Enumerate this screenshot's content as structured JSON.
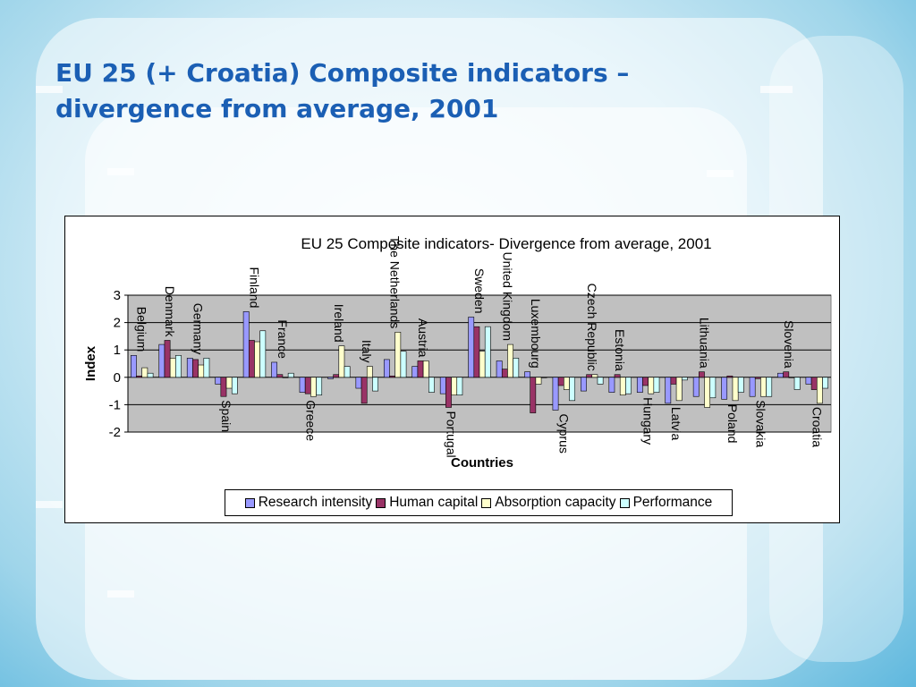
{
  "slide": {
    "title_line1": "EU 25 (+ Croatia) Composite indicators –",
    "title_line2": "divergence from average, 2001"
  },
  "chart_data": {
    "type": "bar",
    "title": "EU 25 Composite indicators- Divergence from average, 2001",
    "xlabel": "Countries",
    "ylabel": "Index",
    "ylim": [
      -2,
      3
    ],
    "yticks": [
      3,
      2,
      1,
      0,
      -1,
      -2
    ],
    "grid": true,
    "legend_position": "bottom",
    "categories": [
      "Belgium",
      "Denmark",
      "Germany",
      "Spain",
      "Finland",
      "France",
      "Greece",
      "Ireland",
      "Italy",
      "The Netherlands",
      "Austria",
      "Portugal",
      "Sweden",
      "United Kingdom",
      "Luxembourg",
      "Cyprus",
      "Czech Republic",
      "Estonia",
      "Hungary",
      "Latvia",
      "Lithuania",
      "Poland",
      "Slovakia",
      "Slovenia",
      "Croatia"
    ],
    "series": [
      {
        "name": "Research intensity",
        "color": "#9999ff",
        "values": [
          0.8,
          1.2,
          0.7,
          -0.25,
          2.4,
          0.55,
          -0.55,
          -0.05,
          -0.4,
          0.65,
          0.4,
          -0.6,
          2.2,
          0.6,
          0.2,
          -1.2,
          -0.5,
          -0.55,
          -0.55,
          -0.95,
          -0.7,
          -0.8,
          -0.7,
          0.15,
          -0.25
        ]
      },
      {
        "name": "Human capital",
        "color": "#993366",
        "values": [
          0.05,
          1.35,
          0.65,
          -0.7,
          1.35,
          0.1,
          -0.6,
          0.1,
          -0.95,
          0.05,
          0.6,
          -1.1,
          1.85,
          0.3,
          -1.3,
          -0.3,
          0.1,
          0.1,
          -0.3,
          -0.25,
          0.2,
          0.05,
          -0.05,
          0.2,
          -0.45
        ]
      },
      {
        "name": "Absorption capacity",
        "color": "#ffffcc",
        "values": [
          0.35,
          0.7,
          0.45,
          -0.4,
          1.3,
          0.0,
          -0.7,
          1.15,
          0.4,
          1.65,
          0.6,
          -0.65,
          0.95,
          1.2,
          -0.25,
          -0.45,
          0.1,
          -0.65,
          -0.6,
          -0.85,
          -1.1,
          -0.85,
          -0.7,
          0.0,
          -0.95
        ]
      },
      {
        "name": "Performance",
        "color": "#ccffff",
        "values": [
          0.15,
          0.8,
          0.7,
          -0.6,
          1.7,
          0.15,
          -0.65,
          0.4,
          -0.5,
          0.95,
          -0.55,
          -0.65,
          1.85,
          0.7,
          0.0,
          -0.85,
          -0.25,
          -0.6,
          -0.55,
          -0.1,
          -0.75,
          -0.55,
          -0.7,
          -0.45,
          -0.4
        ]
      }
    ]
  }
}
